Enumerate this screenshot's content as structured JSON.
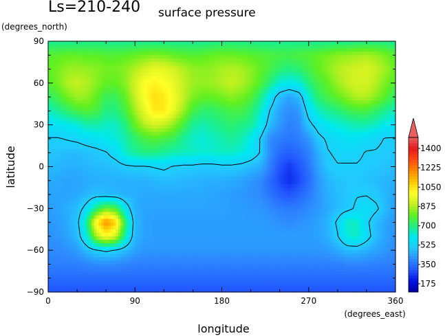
{
  "chart_data": {
    "type": "heatmap",
    "title": "Ls=210-240",
    "subtitle": "surface pressure",
    "xlabel": "longitude",
    "ylabel": "latitude",
    "x_units": "(degrees_east)",
    "y_units": "(degrees_north)",
    "xlim": [
      0,
      360
    ],
    "ylim": [
      -90,
      90
    ],
    "xticks": [
      "0",
      "90",
      "180",
      "270",
      "360"
    ],
    "yticks": [
      "90",
      "60",
      "30",
      "0",
      "−30",
      "−60",
      "−90"
    ],
    "colorbar": {
      "ticks": [
        "175",
        "350",
        "525",
        "700",
        "875",
        "1050",
        "1225",
        "1400"
      ],
      "range": [
        100,
        1500
      ],
      "extend": "max"
    },
    "colors": {
      "v100": "#0000a0",
      "v200": "#0010e0",
      "v300": "#2255ff",
      "v400": "#2e8bff",
      "v500": "#22c8ff",
      "v600": "#00e8f0",
      "v700": "#20f080",
      "v800": "#60f020",
      "v900": "#c8f020",
      "v1000": "#ffff28",
      "v1100": "#ffc800",
      "v1200": "#ff8a00",
      "v1300": "#ff4a14",
      "v1400": "#e41a1a",
      "v1500": "#e86060"
    },
    "contour_level": 525,
    "grid": {
      "lon_step": 10,
      "lat_step": 10,
      "lats": [
        90,
        80,
        70,
        60,
        50,
        40,
        30,
        20,
        10,
        0,
        -10,
        -20,
        -30,
        -40,
        -50,
        -60,
        -70,
        -80,
        -90
      ],
      "values": [
        [
          680,
          680,
          680,
          680,
          690,
          690,
          680,
          680,
          680,
          680,
          680,
          680,
          680,
          680,
          680,
          680,
          680,
          690,
          690,
          690,
          690,
          690,
          680,
          680,
          680,
          680,
          680,
          680,
          680,
          680,
          680,
          680,
          690,
          690,
          690,
          690,
          680
        ],
        [
          780,
          790,
          800,
          800,
          790,
          790,
          780,
          780,
          790,
          800,
          820,
          830,
          820,
          800,
          790,
          780,
          790,
          800,
          810,
          810,
          800,
          790,
          780,
          770,
          760,
          760,
          770,
          780,
          800,
          820,
          840,
          850,
          860,
          870,
          850,
          820,
          780
        ],
        [
          800,
          820,
          850,
          860,
          850,
          840,
          820,
          820,
          840,
          880,
          920,
          960,
          950,
          920,
          880,
          850,
          840,
          850,
          870,
          880,
          870,
          840,
          800,
          760,
          720,
          700,
          720,
          760,
          800,
          840,
          880,
          900,
          920,
          930,
          900,
          860,
          800
        ],
        [
          780,
          820,
          880,
          900,
          880,
          840,
          800,
          800,
          840,
          920,
          1000,
          1020,
          1000,
          960,
          900,
          860,
          850,
          860,
          880,
          900,
          880,
          840,
          780,
          700,
          620,
          600,
          620,
          700,
          760,
          800,
          860,
          900,
          920,
          920,
          880,
          820,
          780
        ],
        [
          720,
          760,
          820,
          860,
          850,
          800,
          740,
          740,
          800,
          900,
          1000,
          1060,
          1040,
          980,
          900,
          830,
          800,
          800,
          820,
          840,
          820,
          780,
          700,
          580,
          480,
          440,
          480,
          620,
          720,
          760,
          800,
          840,
          880,
          880,
          840,
          780,
          720
        ],
        [
          640,
          680,
          720,
          760,
          780,
          760,
          700,
          700,
          760,
          860,
          960,
          1040,
          1040,
          960,
          860,
          760,
          720,
          720,
          740,
          760,
          760,
          720,
          640,
          520,
          440,
          400,
          420,
          560,
          640,
          680,
          700,
          740,
          760,
          760,
          720,
          680,
          640
        ],
        [
          580,
          580,
          600,
          620,
          660,
          660,
          640,
          640,
          700,
          800,
          880,
          920,
          900,
          840,
          760,
          680,
          660,
          680,
          700,
          720,
          700,
          680,
          600,
          480,
          420,
          380,
          400,
          500,
          560,
          600,
          620,
          640,
          660,
          660,
          640,
          600,
          580
        ],
        [
          520,
          520,
          530,
          540,
          560,
          580,
          600,
          620,
          660,
          720,
          760,
          780,
          760,
          740,
          680,
          640,
          620,
          640,
          660,
          680,
          660,
          600,
          520,
          400,
          380,
          360,
          380,
          420,
          500,
          540,
          560,
          580,
          580,
          560,
          540,
          520,
          520
        ],
        [
          500,
          490,
          480,
          480,
          490,
          500,
          520,
          560,
          640,
          680,
          700,
          700,
          680,
          660,
          650,
          640,
          630,
          630,
          640,
          640,
          620,
          580,
          520,
          400,
          340,
          320,
          340,
          380,
          460,
          520,
          540,
          540,
          540,
          520,
          520,
          510,
          500
        ],
        [
          480,
          470,
          460,
          460,
          470,
          480,
          480,
          490,
          510,
          520,
          520,
          530,
          540,
          520,
          510,
          510,
          500,
          500,
          510,
          510,
          500,
          480,
          460,
          380,
          300,
          260,
          300,
          360,
          440,
          500,
          520,
          520,
          520,
          510,
          500,
          490,
          480
        ],
        [
          460,
          450,
          440,
          440,
          450,
          460,
          460,
          460,
          460,
          460,
          460,
          470,
          480,
          480,
          470,
          470,
          460,
          460,
          460,
          450,
          440,
          420,
          400,
          340,
          280,
          240,
          280,
          340,
          420,
          470,
          490,
          500,
          500,
          490,
          480,
          470,
          460
        ],
        [
          440,
          440,
          440,
          450,
          470,
          490,
          480,
          470,
          460,
          460,
          450,
          450,
          450,
          450,
          450,
          450,
          450,
          440,
          440,
          430,
          420,
          410,
          400,
          360,
          320,
          300,
          330,
          370,
          420,
          460,
          480,
          500,
          520,
          520,
          500,
          470,
          440
        ],
        [
          430,
          440,
          460,
          480,
          560,
          700,
          800,
          760,
          580,
          460,
          440,
          440,
          440,
          440,
          440,
          440,
          440,
          440,
          440,
          430,
          430,
          420,
          420,
          400,
          380,
          370,
          380,
          400,
          420,
          450,
          480,
          500,
          540,
          570,
          540,
          480,
          430
        ],
        [
          420,
          430,
          450,
          500,
          680,
          1020,
          1200,
          1080,
          720,
          480,
          440,
          430,
          430,
          430,
          430,
          430,
          430,
          430,
          430,
          430,
          430,
          430,
          430,
          420,
          410,
          400,
          410,
          420,
          440,
          470,
          540,
          640,
          640,
          540,
          480,
          440,
          420
        ],
        [
          410,
          420,
          440,
          480,
          620,
          880,
          1000,
          920,
          660,
          470,
          440,
          430,
          430,
          430,
          430,
          430,
          430,
          430,
          430,
          430,
          430,
          430,
          430,
          430,
          430,
          430,
          430,
          430,
          440,
          460,
          520,
          620,
          640,
          560,
          480,
          440,
          410
        ],
        [
          400,
          400,
          410,
          430,
          480,
          520,
          540,
          520,
          480,
          440,
          420,
          420,
          420,
          420,
          420,
          420,
          420,
          420,
          420,
          420,
          420,
          420,
          420,
          420,
          420,
          420,
          420,
          420,
          420,
          430,
          450,
          480,
          480,
          460,
          440,
          420,
          400
        ],
        [
          380,
          380,
          380,
          380,
          390,
          400,
          400,
          400,
          390,
          380,
          380,
          380,
          380,
          380,
          380,
          380,
          380,
          380,
          380,
          380,
          380,
          380,
          380,
          380,
          380,
          380,
          380,
          380,
          380,
          380,
          380,
          390,
          390,
          390,
          380,
          380,
          380
        ],
        [
          340,
          340,
          340,
          340,
          340,
          340,
          340,
          340,
          340,
          340,
          340,
          340,
          340,
          340,
          340,
          340,
          340,
          340,
          340,
          340,
          340,
          340,
          340,
          340,
          340,
          340,
          340,
          340,
          340,
          340,
          340,
          340,
          340,
          340,
          340,
          340,
          340
        ],
        [
          300,
          300,
          300,
          300,
          300,
          300,
          300,
          300,
          300,
          300,
          300,
          300,
          300,
          300,
          300,
          300,
          300,
          300,
          300,
          300,
          300,
          300,
          300,
          300,
          300,
          300,
          300,
          300,
          300,
          300,
          300,
          300,
          300,
          300,
          300,
          300,
          300
        ]
      ]
    }
  }
}
